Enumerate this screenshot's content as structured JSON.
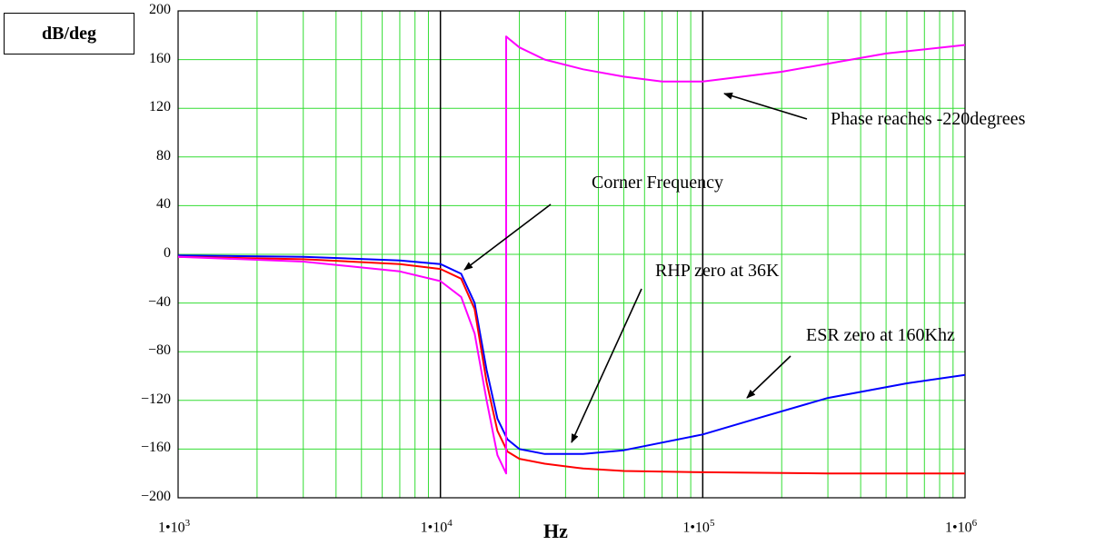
{
  "chart_data": {
    "type": "line",
    "ylabel": "dB/deg",
    "xlabel": "Hz",
    "x_scale": "log",
    "xlim": [
      1000,
      1000000
    ],
    "ylim": [
      -200,
      200
    ],
    "grid": true,
    "yticks": [
      "200",
      "160",
      "120",
      "80",
      "40",
      "0",
      "−40",
      "−80",
      "−120",
      "−160",
      "−200"
    ],
    "xticks": [
      {
        "base": "1•10",
        "exp": "3"
      },
      {
        "base": "1•10",
        "exp": "4"
      },
      {
        "base": "1•10",
        "exp": "5"
      },
      {
        "base": "1•10",
        "exp": "6"
      }
    ],
    "series": [
      {
        "color": "#0000ff",
        "x": [
          1000,
          3000,
          7000,
          10000,
          12000,
          13500,
          15000,
          16500,
          18000,
          20000,
          25000,
          35000,
          50000,
          100000,
          160000,
          300000,
          600000,
          1000000
        ],
        "y": [
          -1,
          -2,
          -5,
          -8,
          -16,
          -40,
          -95,
          -135,
          -152,
          -160,
          -164,
          -164,
          -161,
          -148,
          -135,
          -118,
          -106,
          -99
        ]
      },
      {
        "color": "#ff0000",
        "x": [
          1000,
          3000,
          7000,
          10000,
          12000,
          13500,
          15000,
          16500,
          18000,
          20000,
          25000,
          35000,
          50000,
          100000,
          300000,
          1000000
        ],
        "y": [
          -2,
          -4,
          -8,
          -12,
          -20,
          -45,
          -105,
          -145,
          -162,
          -168,
          -172,
          -176,
          -178,
          -179,
          -180,
          -180
        ]
      },
      {
        "color": "#ff00ff",
        "x": [
          1000,
          3000,
          7000,
          10000,
          12000,
          13500,
          15000,
          16500,
          17800,
          17800,
          18500,
          20000,
          25000,
          35000,
          50000,
          70000,
          100000,
          200000,
          500000,
          1000000
        ],
        "y": [
          -2,
          -6,
          -14,
          -22,
          -35,
          -65,
          -120,
          -165,
          -180,
          179,
          176,
          170,
          160,
          152,
          146,
          142,
          142,
          150,
          165,
          172
        ]
      }
    ],
    "annotations": [
      "Phase reaches -220degrees",
      "Corner Frequency",
      "RHP zero at 36K",
      "ESR zero at 160Khz"
    ]
  }
}
